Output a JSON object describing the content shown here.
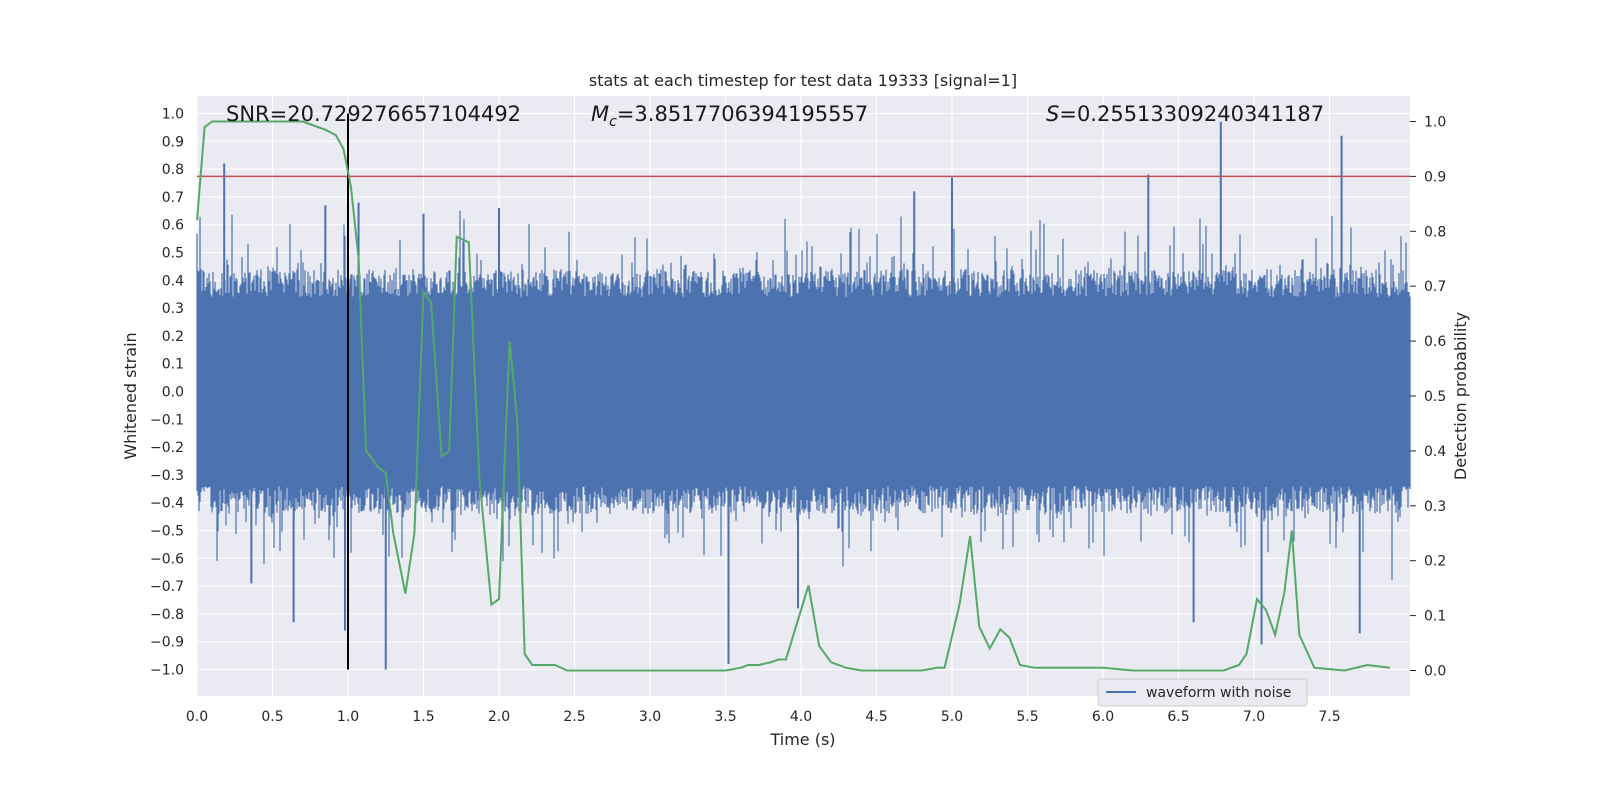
{
  "chart_data": {
    "type": "line",
    "title": "stats at each timestep for test data 19333 [signal=1]",
    "xlabel": "Time (s)",
    "ylabel": "Whitened strain",
    "ylabel_right": "Detection probability",
    "xlim": [
      0.0,
      8.0
    ],
    "ylim": [
      -1.1,
      1.1
    ],
    "ylim_right": [
      -0.05,
      1.05
    ],
    "x_ticks": [
      "0.0",
      "0.5",
      "1.0",
      "1.5",
      "2.0",
      "2.5",
      "3.0",
      "3.5",
      "4.0",
      "4.5",
      "5.0",
      "5.5",
      "6.0",
      "6.5",
      "7.0",
      "7.5"
    ],
    "y_ticks": [
      "-1.0",
      "-0.9",
      "-0.8",
      "-0.7",
      "-0.6",
      "-0.5",
      "-0.4",
      "-0.3",
      "-0.2",
      "-0.1",
      "0.0",
      "0.1",
      "0.2",
      "0.3",
      "0.4",
      "0.5",
      "0.6",
      "0.7",
      "0.8",
      "0.9",
      "1.0"
    ],
    "y_ticks_right": [
      "0.0",
      "0.1",
      "0.2",
      "0.3",
      "0.4",
      "0.5",
      "0.6",
      "0.7",
      "0.8",
      "0.9",
      "1.0"
    ],
    "grid": true,
    "legend": {
      "position": "lower-right",
      "entries": [
        "waveform with noise"
      ]
    },
    "annotations": {
      "snr": "SNR=20.729276657104492",
      "mc_symbol": "M",
      "mc_sub": "c",
      "mc_value": "=3.8517706394195557",
      "s_symbol": "S",
      "s_value": "=0.25513309240341187"
    },
    "threshold_right": 0.9,
    "merger_time": 1.0,
    "series": [
      {
        "name": "waveform with noise",
        "axis": "left",
        "kind": "noise",
        "color": "#4c72b0",
        "typical_envelope": 0.4,
        "peaks": [
          {
            "x": 0.18,
            "y": 0.82
          },
          {
            "x": 0.85,
            "y": 0.67
          },
          {
            "x": 0.98,
            "y": -0.86
          },
          {
            "x": 1.25,
            "y": -1.0
          },
          {
            "x": 1.07,
            "y": 0.68
          },
          {
            "x": 1.5,
            "y": 0.64
          },
          {
            "x": 2.0,
            "y": 0.66
          },
          {
            "x": 3.52,
            "y": -0.98
          },
          {
            "x": 3.98,
            "y": -0.78
          },
          {
            "x": 4.75,
            "y": 0.72
          },
          {
            "x": 5.0,
            "y": 0.77
          },
          {
            "x": 6.3,
            "y": 0.78
          },
          {
            "x": 6.6,
            "y": -0.83
          },
          {
            "x": 6.78,
            "y": 0.97
          },
          {
            "x": 7.05,
            "y": -0.91
          },
          {
            "x": 7.58,
            "y": 0.92
          },
          {
            "x": 7.7,
            "y": -0.87
          },
          {
            "x": 0.64,
            "y": -0.83
          },
          {
            "x": 0.36,
            "y": -0.69
          }
        ]
      },
      {
        "name": "Detection probability",
        "axis": "right",
        "color": "#55a868",
        "x": [
          0.0,
          0.05,
          0.1,
          0.2,
          0.3,
          0.4,
          0.5,
          0.6,
          0.7,
          0.8,
          0.85,
          0.92,
          0.97,
          1.02,
          1.07,
          1.12,
          1.2,
          1.25,
          1.3,
          1.38,
          1.44,
          1.5,
          1.55,
          1.62,
          1.67,
          1.72,
          1.8,
          1.87,
          1.95,
          2.0,
          2.07,
          2.12,
          2.17,
          2.22,
          2.3,
          2.37,
          2.45,
          2.55,
          2.7,
          2.9,
          3.1,
          3.3,
          3.5,
          3.6,
          3.65,
          3.72,
          3.8,
          3.85,
          3.9,
          4.0,
          4.05,
          4.12,
          4.2,
          4.3,
          4.4,
          4.6,
          4.8,
          4.9,
          4.95,
          5.05,
          5.12,
          5.18,
          5.25,
          5.32,
          5.38,
          5.45,
          5.55,
          5.65,
          5.8,
          6.0,
          6.2,
          6.4,
          6.6,
          6.8,
          6.9,
          6.95,
          7.02,
          7.08,
          7.14,
          7.2,
          7.25,
          7.3,
          7.4,
          7.6,
          7.75,
          7.9
        ],
        "values": [
          0.82,
          0.99,
          1.0,
          1.0,
          1.0,
          1.0,
          1.0,
          1.0,
          1.0,
          0.99,
          0.985,
          0.975,
          0.95,
          0.88,
          0.75,
          0.4,
          0.37,
          0.36,
          0.25,
          0.14,
          0.25,
          0.69,
          0.67,
          0.39,
          0.4,
          0.79,
          0.78,
          0.35,
          0.12,
          0.13,
          0.6,
          0.46,
          0.03,
          0.01,
          0.01,
          0.01,
          0.0,
          0.0,
          0.0,
          0.0,
          0.0,
          0.0,
          0.0,
          0.005,
          0.01,
          0.01,
          0.015,
          0.02,
          0.02,
          0.11,
          0.155,
          0.045,
          0.015,
          0.005,
          0.0,
          0.0,
          0.0,
          0.005,
          0.005,
          0.12,
          0.245,
          0.08,
          0.04,
          0.075,
          0.06,
          0.01,
          0.005,
          0.005,
          0.005,
          0.005,
          0.0,
          0.0,
          0.0,
          0.0,
          0.01,
          0.03,
          0.13,
          0.11,
          0.065,
          0.14,
          0.255,
          0.065,
          0.005,
          0.0,
          0.01,
          0.005
        ]
      }
    ]
  }
}
